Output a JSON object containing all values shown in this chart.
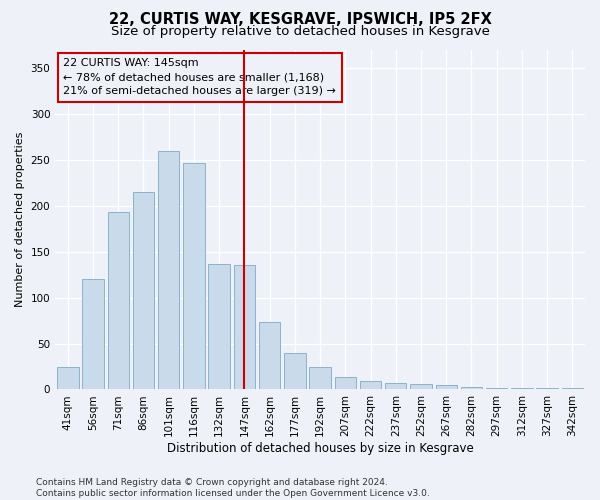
{
  "title": "22, CURTIS WAY, KESGRAVE, IPSWICH, IP5 2FX",
  "subtitle": "Size of property relative to detached houses in Kesgrave",
  "xlabel": "Distribution of detached houses by size in Kesgrave",
  "ylabel": "Number of detached properties",
  "categories": [
    "41sqm",
    "56sqm",
    "71sqm",
    "86sqm",
    "101sqm",
    "116sqm",
    "132sqm",
    "147sqm",
    "162sqm",
    "177sqm",
    "192sqm",
    "207sqm",
    "222sqm",
    "237sqm",
    "252sqm",
    "267sqm",
    "282sqm",
    "297sqm",
    "312sqm",
    "327sqm",
    "342sqm"
  ],
  "values": [
    25,
    120,
    193,
    215,
    260,
    247,
    137,
    136,
    74,
    40,
    25,
    14,
    9,
    7,
    6,
    5,
    3,
    2,
    2,
    2,
    2
  ],
  "bar_color": "#c9daea",
  "bar_edge_color": "#8ab4cc",
  "property_line_label": "22 CURTIS WAY: 145sqm",
  "annotation_line1": "← 78% of detached houses are smaller (1,168)",
  "annotation_line2": "21% of semi-detached houses are larger (319) →",
  "line_color": "#cc0000",
  "box_edge_color": "#cc0000",
  "background_color": "#eef2f8",
  "footer_line1": "Contains HM Land Registry data © Crown copyright and database right 2024.",
  "footer_line2": "Contains public sector information licensed under the Open Government Licence v3.0.",
  "ylim": [
    0,
    370
  ],
  "yticks": [
    0,
    50,
    100,
    150,
    200,
    250,
    300,
    350
  ],
  "title_fontsize": 10.5,
  "subtitle_fontsize": 9.5,
  "xlabel_fontsize": 8.5,
  "ylabel_fontsize": 8,
  "tick_fontsize": 7.5,
  "annotation_fontsize": 8,
  "footer_fontsize": 6.5,
  "line_index": 7
}
